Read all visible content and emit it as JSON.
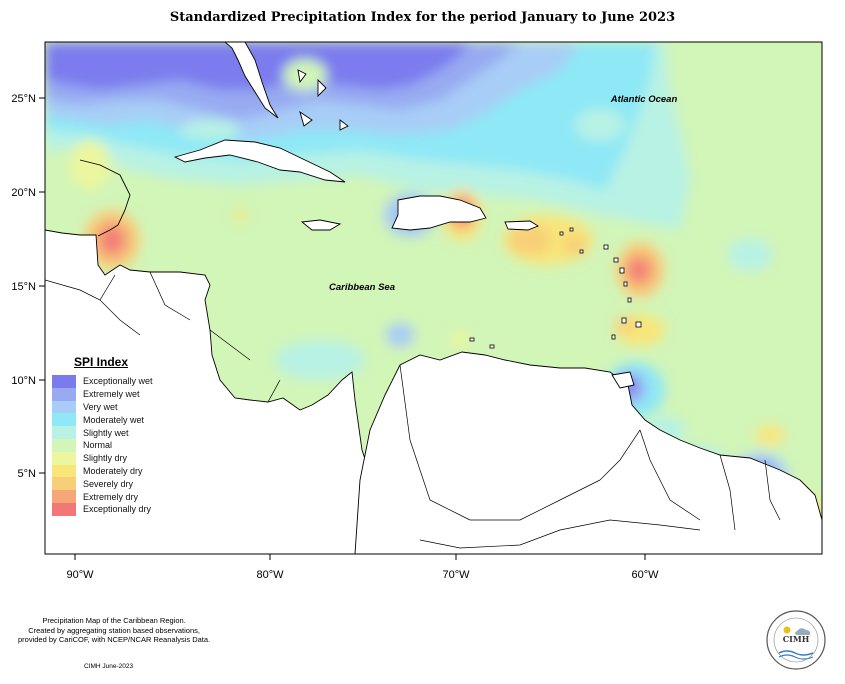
{
  "title": "Standardized Precipitation Index for the period January to June 2023",
  "map": {
    "x_axis_ticks": [
      "90°W",
      "80°W",
      "70°W",
      "60°W"
    ],
    "y_axis_ticks": [
      "25°N",
      "20°N",
      "15°N",
      "10°N",
      "5°N"
    ],
    "ocean_labels": {
      "atlantic": "Atlantic Ocean",
      "caribbean": "Caribbean Sea"
    }
  },
  "legend": {
    "title": "SPI Index",
    "items": [
      {
        "label": "Exceptionally wet",
        "color": "#7b7bee"
      },
      {
        "label": "Extremely wet",
        "color": "#98aaf2"
      },
      {
        "label": "Very wet",
        "color": "#a8cdf6"
      },
      {
        "label": "Moderately wet",
        "color": "#8ee8f6"
      },
      {
        "label": "Slightly wet",
        "color": "#b8f2e4"
      },
      {
        "label": "Normal",
        "color": "#d2f5b8"
      },
      {
        "label": "Slightly dry",
        "color": "#ecf69e"
      },
      {
        "label": "Moderately dry",
        "color": "#f8e67a"
      },
      {
        "label": "Severely dry",
        "color": "#f8cf78"
      },
      {
        "label": "Extremely dry",
        "color": "#f6a778"
      },
      {
        "label": "Exceptionally dry",
        "color": "#f27878"
      }
    ]
  },
  "footer": {
    "note_line1": "Precipitation Map of the Caribbean Region.",
    "note_line2": "Created by aggregating station based observations,",
    "note_line3": "provided by CariCOF, with NCEP/NCAR Reanalysis Data.",
    "credit": "CIMH June-2023",
    "logo_text": "CIMH"
  }
}
